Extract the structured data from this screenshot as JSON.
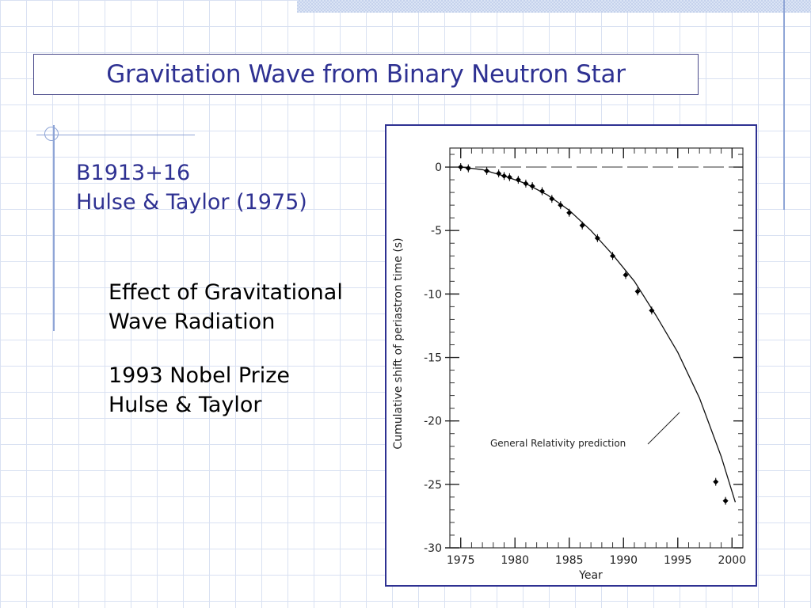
{
  "slide": {
    "title": "Gravitation Wave from Binary Neutron Star",
    "subtitle_line1": "B1913+16",
    "subtitle_line2": "Hulse & Taylor (1975)",
    "point1_line1": "Effect of Gravitational",
    "point1_line2": "Wave Radiation",
    "point2_line1": "1993 Nobel Prize",
    "point2_line2": "Hulse & Taylor"
  },
  "chart_data": {
    "type": "scatter",
    "xlabel": "Year",
    "ylabel": "Cumulative shift of periastron time (s)",
    "xlim": [
      1974,
      2001
    ],
    "ylim": [
      -30,
      1.5
    ],
    "x_ticks": [
      1975,
      1980,
      1985,
      1990,
      1995,
      2000
    ],
    "y_ticks": [
      0,
      -5,
      -10,
      -15,
      -20,
      -25,
      -30
    ],
    "x_tick_labels": [
      "1975",
      "1980",
      "1985",
      "1990",
      "1995",
      "2000"
    ],
    "y_tick_labels": [
      "0",
      "-5",
      "-10",
      "-15",
      "-20",
      "-25",
      "-30"
    ],
    "annotation": "General Relativity prediction",
    "series": [
      {
        "kind": "points",
        "x": [
          1975.0,
          1975.7,
          1977.4,
          1978.5,
          1979.0,
          1979.5,
          1980.3,
          1981.0,
          1981.6,
          1982.5,
          1983.4,
          1984.2,
          1985.0,
          1986.2,
          1987.6,
          1989.0,
          1990.2,
          1991.3,
          1992.6,
          1998.5,
          1999.4
        ],
        "y": [
          0.0,
          -0.1,
          -0.3,
          -0.5,
          -0.7,
          -0.8,
          -1.0,
          -1.3,
          -1.5,
          -1.9,
          -2.5,
          -3.0,
          -3.6,
          -4.6,
          -5.6,
          -7.0,
          -8.5,
          -9.8,
          -11.3,
          -24.8,
          -26.3
        ]
      },
      {
        "kind": "curve",
        "x": [
          1975,
          1977,
          1979,
          1981,
          1983,
          1985,
          1987,
          1989,
          1991,
          1993,
          1995,
          1997,
          1999,
          2000.3
        ],
        "y": [
          0.0,
          -0.2,
          -0.7,
          -1.3,
          -2.2,
          -3.4,
          -5.0,
          -6.9,
          -9.0,
          -11.7,
          -14.6,
          -18.2,
          -22.8,
          -26.4
        ]
      }
    ]
  }
}
